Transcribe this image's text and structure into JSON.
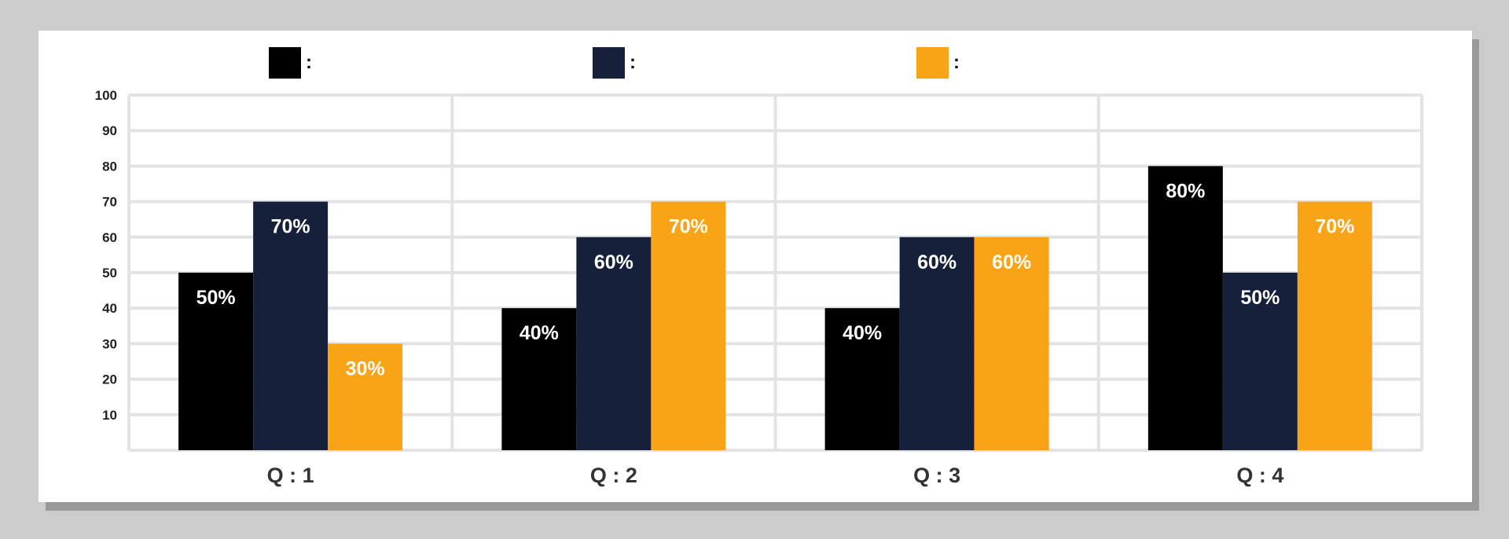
{
  "chart_data": {
    "type": "bar",
    "categories": [
      "Q : 1",
      "Q : 2",
      "Q : 3",
      "Q : 4"
    ],
    "series": [
      {
        "color": "#000000",
        "values": [
          50,
          40,
          40,
          80
        ],
        "labels": [
          "50%",
          "40%",
          "40%",
          "80%"
        ]
      },
      {
        "color": "#16203a",
        "values": [
          70,
          60,
          60,
          50
        ],
        "labels": [
          "70%",
          "60%",
          "60%",
          "50%"
        ]
      },
      {
        "color": "#f8a416",
        "values": [
          30,
          70,
          60,
          70
        ],
        "labels": [
          "30%",
          "70%",
          "60%",
          "70%"
        ]
      }
    ],
    "legend": [
      {
        "color": "#000000",
        "text": ":"
      },
      {
        "color": "#16203a",
        "text": ":"
      },
      {
        "color": "#f8a416",
        "text": ":"
      }
    ],
    "ylim": [
      0,
      100
    ],
    "yticks": [
      10,
      20,
      30,
      40,
      50,
      60,
      70,
      80,
      90,
      100
    ],
    "grid": true,
    "legend_position": "top"
  }
}
